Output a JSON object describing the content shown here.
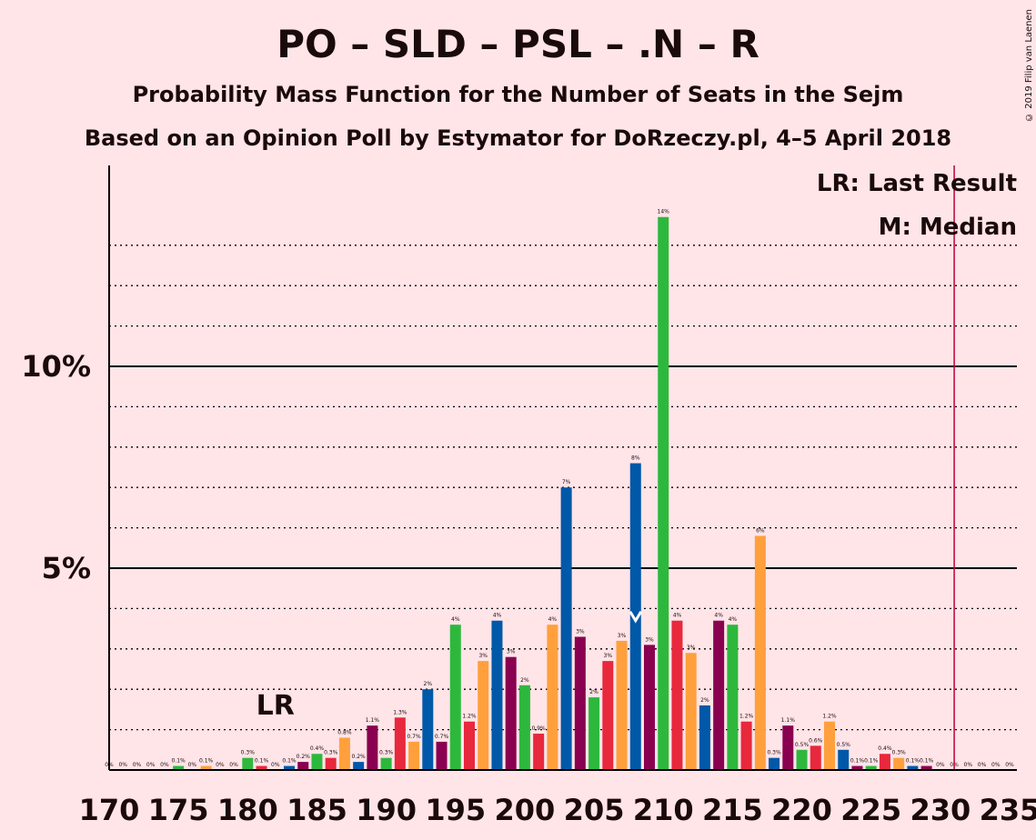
{
  "title": "PO – SLD – PSL – .N – R",
  "subtitle1": "Probability Mass Function for the Number of Seats in the Sejm",
  "subtitle2": "Based on an Opinion Poll by Estymator for DoRzeczy.pl, 4–5 April 2018",
  "copyright": "© 2019 Filip van Laenen",
  "legend": {
    "lr": "LR: Last Result",
    "median": "M: Median"
  },
  "lr_marker": "LR",
  "chart_data": {
    "type": "bar",
    "xlim": [
      170,
      235
    ],
    "ylim": [
      0,
      15
    ],
    "x_ticks": [
      170,
      175,
      180,
      185,
      190,
      195,
      200,
      205,
      210,
      215,
      220,
      225,
      230,
      235
    ],
    "x_tick_labels": [
      "170",
      "175",
      "180",
      "185",
      "190",
      "195",
      "200",
      "205",
      "210",
      "215",
      "220",
      "225",
      "230",
      "235"
    ],
    "y_ticks": [
      5,
      10
    ],
    "y_tick_labels": [
      "5%",
      "10%"
    ],
    "grid": "dotted every 1%, solid at 5% and 10%",
    "colors": [
      "#2db83d",
      "#e8283c",
      "#ffa03c",
      "#0058a8",
      "#8a0050"
    ],
    "majority_line_x": 231,
    "median_x": 208,
    "last_result_x": 182,
    "bars": [
      {
        "x": 170,
        "value": 0.0,
        "label": "0%"
      },
      {
        "x": 171,
        "value": 0.0,
        "label": "0%"
      },
      {
        "x": 172,
        "value": 0.0,
        "label": "0%"
      },
      {
        "x": 173,
        "value": 0.0,
        "label": "0%"
      },
      {
        "x": 174,
        "value": 0.0,
        "label": "0%"
      },
      {
        "x": 175,
        "value": 0.1,
        "label": "0.1%"
      },
      {
        "x": 176,
        "value": 0.0,
        "label": "0%"
      },
      {
        "x": 177,
        "value": 0.1,
        "label": "0.1%"
      },
      {
        "x": 178,
        "value": 0.0,
        "label": "0%"
      },
      {
        "x": 179,
        "value": 0.0,
        "label": "0%"
      },
      {
        "x": 180,
        "value": 0.3,
        "label": "0.3%"
      },
      {
        "x": 181,
        "value": 0.1,
        "label": "0.1%"
      },
      {
        "x": 182,
        "value": 0.0,
        "label": "0%"
      },
      {
        "x": 183,
        "value": 0.1,
        "label": "0.1%"
      },
      {
        "x": 184,
        "value": 0.2,
        "label": "0.2%"
      },
      {
        "x": 185,
        "value": 0.4,
        "label": "0.4%"
      },
      {
        "x": 186,
        "value": 0.3,
        "label": "0.3%"
      },
      {
        "x": 187,
        "value": 0.8,
        "label": "0.8%"
      },
      {
        "x": 188,
        "value": 0.2,
        "label": "0.2%"
      },
      {
        "x": 189,
        "value": 1.1,
        "label": "1.1%"
      },
      {
        "x": 190,
        "value": 0.3,
        "label": "0.3%"
      },
      {
        "x": 191,
        "value": 1.3,
        "label": "1.3%"
      },
      {
        "x": 192,
        "value": 0.7,
        "label": "0.7%"
      },
      {
        "x": 193,
        "value": 2.0,
        "label": "2%"
      },
      {
        "x": 194,
        "value": 0.7,
        "label": "0.7%"
      },
      {
        "x": 195,
        "value": 3.6,
        "label": "4%"
      },
      {
        "x": 196,
        "value": 1.2,
        "label": "1.2%"
      },
      {
        "x": 197,
        "value": 2.7,
        "label": "3%"
      },
      {
        "x": 198,
        "value": 3.7,
        "label": "4%"
      },
      {
        "x": 199,
        "value": 2.8,
        "label": "3%"
      },
      {
        "x": 200,
        "value": 2.1,
        "label": "2%"
      },
      {
        "x": 201,
        "value": 0.9,
        "label": "0.9%"
      },
      {
        "x": 202,
        "value": 3.6,
        "label": "4%"
      },
      {
        "x": 203,
        "value": 7.0,
        "label": "7%"
      },
      {
        "x": 204,
        "value": 3.3,
        "label": "3%"
      },
      {
        "x": 205,
        "value": 1.8,
        "label": "2%"
      },
      {
        "x": 206,
        "value": 2.7,
        "label": "3%"
      },
      {
        "x": 207,
        "value": 3.2,
        "label": "3%"
      },
      {
        "x": 208,
        "value": 7.6,
        "label": "8%"
      },
      {
        "x": 209,
        "value": 3.1,
        "label": "3%"
      },
      {
        "x": 210,
        "value": 13.7,
        "label": "14%"
      },
      {
        "x": 211,
        "value": 3.7,
        "label": "4%"
      },
      {
        "x": 212,
        "value": 2.9,
        "label": "3%"
      },
      {
        "x": 213,
        "value": 1.6,
        "label": "2%"
      },
      {
        "x": 214,
        "value": 3.7,
        "label": "4%"
      },
      {
        "x": 215,
        "value": 3.6,
        "label": "4%"
      },
      {
        "x": 216,
        "value": 1.2,
        "label": "1.2%"
      },
      {
        "x": 217,
        "value": 5.8,
        "label": "6%"
      },
      {
        "x": 218,
        "value": 0.3,
        "label": "0.3%"
      },
      {
        "x": 219,
        "value": 1.1,
        "label": "1.1%"
      },
      {
        "x": 220,
        "value": 0.5,
        "label": "0.5%"
      },
      {
        "x": 221,
        "value": 0.6,
        "label": "0.6%"
      },
      {
        "x": 222,
        "value": 1.2,
        "label": "1.2%"
      },
      {
        "x": 223,
        "value": 0.5,
        "label": "0.5%"
      },
      {
        "x": 224,
        "value": 0.1,
        "label": "0.1%"
      },
      {
        "x": 225,
        "value": 0.1,
        "label": "0.1%"
      },
      {
        "x": 226,
        "value": 0.4,
        "label": "0.4%"
      },
      {
        "x": 227,
        "value": 0.3,
        "label": "0.3%"
      },
      {
        "x": 228,
        "value": 0.1,
        "label": "0.1%"
      },
      {
        "x": 229,
        "value": 0.1,
        "label": "0.1%"
      },
      {
        "x": 230,
        "value": 0.0,
        "label": "0%"
      },
      {
        "x": 231,
        "value": 0.0,
        "label": "0%"
      },
      {
        "x": 232,
        "value": 0.0,
        "label": "0%"
      },
      {
        "x": 233,
        "value": 0.0,
        "label": "0%"
      },
      {
        "x": 234,
        "value": 0.0,
        "label": "0%"
      },
      {
        "x": 235,
        "value": 0.0,
        "label": "0%"
      }
    ]
  }
}
